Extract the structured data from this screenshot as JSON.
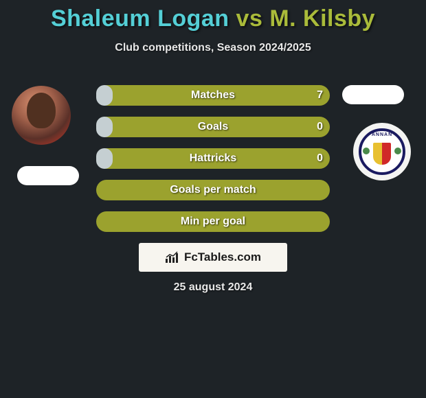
{
  "title": {
    "player1": "Shaleum Logan",
    "vs": "vs",
    "player2": "M. Kilsby",
    "p1_color": "#54cfd6",
    "vs_color": "#aabb3a",
    "p2_color": "#aabb3a"
  },
  "subtitle": "Club competitions, Season 2024/2025",
  "stats": {
    "bar_bg_color": "#9ba22e",
    "bar_fill_color": "#c5cfd2",
    "rows": [
      {
        "label": "Matches",
        "value": "7",
        "fill_pct": 7
      },
      {
        "label": "Goals",
        "value": "0",
        "fill_pct": 7
      },
      {
        "label": "Hattricks",
        "value": "0",
        "fill_pct": 7
      },
      {
        "label": "Goals per match",
        "value": "",
        "fill_pct": 100
      },
      {
        "label": "Min per goal",
        "value": "",
        "fill_pct": 100
      }
    ]
  },
  "badge": {
    "top_text": "ANNAN",
    "name": "annan-athletic-badge"
  },
  "logo": {
    "text": "FcTables.com"
  },
  "date": "25 august 2024",
  "colors": {
    "background": "#1e2327",
    "text_light": "#e8e8e8"
  }
}
